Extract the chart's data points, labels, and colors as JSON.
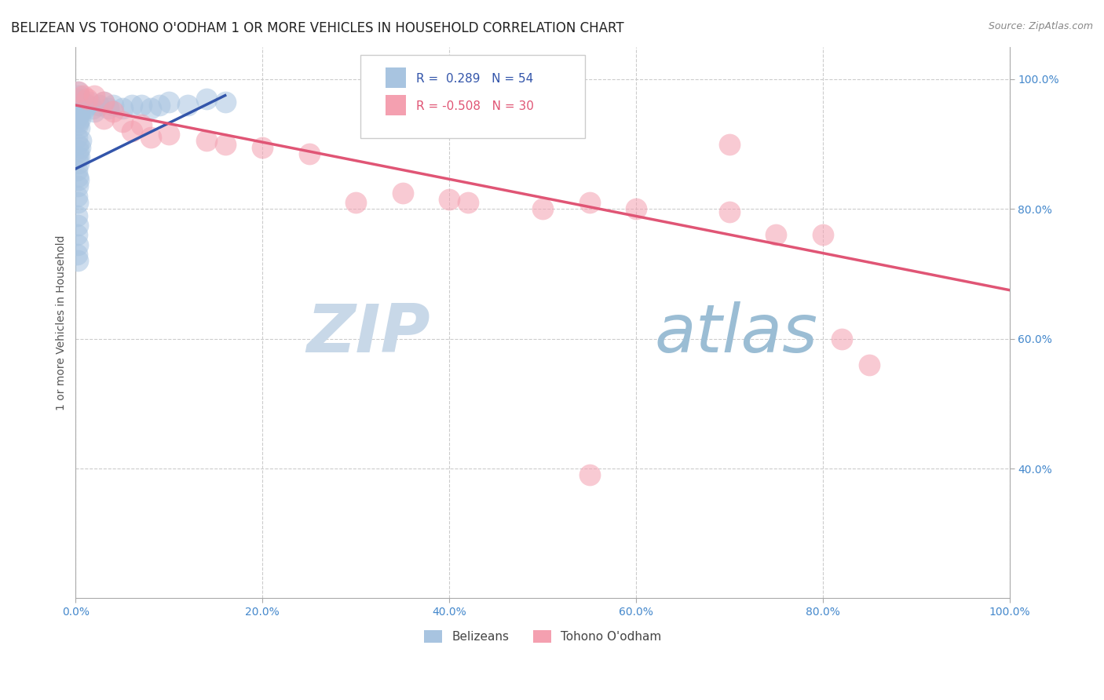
{
  "title": "BELIZEAN VS TOHONO O'ODHAM 1 OR MORE VEHICLES IN HOUSEHOLD CORRELATION CHART",
  "source_text": "Source: ZipAtlas.com",
  "ylabel": "1 or more Vehicles in Household",
  "watermark": "ZIPatlas",
  "legend_blue_r": "0.289",
  "legend_blue_n": "54",
  "legend_pink_r": "-0.508",
  "legend_pink_n": "30",
  "blue_color": "#a8c4e0",
  "pink_color": "#f4a0b0",
  "blue_line_color": "#3355aa",
  "pink_line_color": "#e05575",
  "watermark_zip_color": "#c8d8e8",
  "watermark_atlas_color": "#9bbdd4",
  "tick_label_color": "#4488cc",
  "blue_points": [
    [
      0.001,
      0.97
    ],
    [
      0.002,
      0.98
    ],
    [
      0.002,
      0.96
    ],
    [
      0.003,
      0.975
    ],
    [
      0.003,
      0.955
    ],
    [
      0.004,
      0.965
    ],
    [
      0.004,
      0.945
    ],
    [
      0.005,
      0.97
    ],
    [
      0.001,
      0.94
    ],
    [
      0.002,
      0.93
    ],
    [
      0.003,
      0.935
    ],
    [
      0.004,
      0.925
    ],
    [
      0.005,
      0.94
    ],
    [
      0.006,
      0.955
    ],
    [
      0.007,
      0.96
    ],
    [
      0.008,
      0.965
    ],
    [
      0.001,
      0.91
    ],
    [
      0.002,
      0.9
    ],
    [
      0.002,
      0.88
    ],
    [
      0.003,
      0.89
    ],
    [
      0.003,
      0.87
    ],
    [
      0.004,
      0.88
    ],
    [
      0.005,
      0.895
    ],
    [
      0.006,
      0.905
    ],
    [
      0.001,
      0.86
    ],
    [
      0.002,
      0.85
    ],
    [
      0.002,
      0.835
    ],
    [
      0.003,
      0.845
    ],
    [
      0.001,
      0.82
    ],
    [
      0.002,
      0.81
    ],
    [
      0.001,
      0.79
    ],
    [
      0.002,
      0.775
    ],
    [
      0.001,
      0.76
    ],
    [
      0.002,
      0.745
    ],
    [
      0.001,
      0.73
    ],
    [
      0.002,
      0.72
    ],
    [
      0.01,
      0.955
    ],
    [
      0.012,
      0.96
    ],
    [
      0.015,
      0.965
    ],
    [
      0.018,
      0.955
    ],
    [
      0.02,
      0.95
    ],
    [
      0.025,
      0.96
    ],
    [
      0.03,
      0.965
    ],
    [
      0.035,
      0.955
    ],
    [
      0.04,
      0.96
    ],
    [
      0.05,
      0.955
    ],
    [
      0.06,
      0.96
    ],
    [
      0.07,
      0.96
    ],
    [
      0.08,
      0.955
    ],
    [
      0.09,
      0.96
    ],
    [
      0.1,
      0.965
    ],
    [
      0.12,
      0.96
    ],
    [
      0.14,
      0.97
    ],
    [
      0.16,
      0.965
    ]
  ],
  "pink_points": [
    [
      0.003,
      0.98
    ],
    [
      0.008,
      0.975
    ],
    [
      0.012,
      0.97
    ],
    [
      0.02,
      0.975
    ],
    [
      0.03,
      0.965
    ],
    [
      0.03,
      0.94
    ],
    [
      0.04,
      0.95
    ],
    [
      0.05,
      0.935
    ],
    [
      0.06,
      0.92
    ],
    [
      0.07,
      0.93
    ],
    [
      0.08,
      0.91
    ],
    [
      0.1,
      0.915
    ],
    [
      0.14,
      0.905
    ],
    [
      0.16,
      0.9
    ],
    [
      0.2,
      0.895
    ],
    [
      0.25,
      0.885
    ],
    [
      0.3,
      0.81
    ],
    [
      0.35,
      0.825
    ],
    [
      0.4,
      0.815
    ],
    [
      0.42,
      0.81
    ],
    [
      0.5,
      0.8
    ],
    [
      0.55,
      0.81
    ],
    [
      0.6,
      0.8
    ],
    [
      0.7,
      0.795
    ],
    [
      0.75,
      0.76
    ],
    [
      0.8,
      0.76
    ],
    [
      0.82,
      0.6
    ],
    [
      0.85,
      0.56
    ],
    [
      0.55,
      0.39
    ],
    [
      0.7,
      0.9
    ]
  ],
  "blue_trendline": [
    [
      0.0,
      0.862
    ],
    [
      0.16,
      0.975
    ]
  ],
  "pink_trendline": [
    [
      0.0,
      0.96
    ],
    [
      1.0,
      0.675
    ]
  ],
  "xlim": [
    0.0,
    1.0
  ],
  "ylim": [
    0.2,
    1.05
  ],
  "xticks": [
    0.0,
    0.2,
    0.4,
    0.6,
    0.8,
    1.0
  ],
  "yticks": [
    0.4,
    0.6,
    0.8,
    1.0
  ],
  "xticklabels": [
    "0.0%",
    "20.0%",
    "40.0%",
    "60.0%",
    "80.0%",
    "100.0%"
  ],
  "yticklabels": [
    "40.0%",
    "60.0%",
    "80.0%",
    "100.0%"
  ]
}
